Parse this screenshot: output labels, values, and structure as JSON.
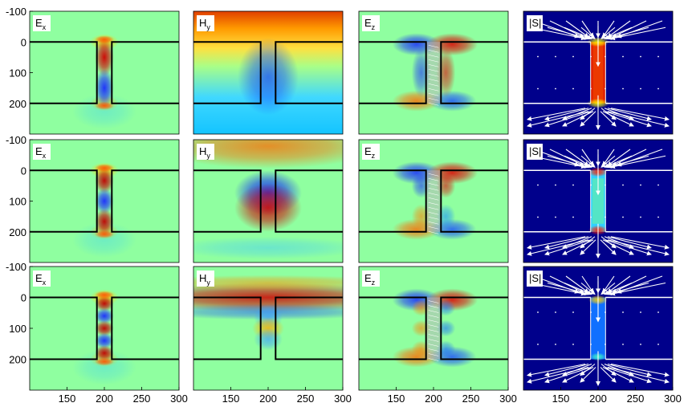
{
  "chart_data": {
    "type": "heatmap",
    "title": "",
    "x_ticks": [
      "150",
      "200",
      "250",
      "300"
    ],
    "x_tick_values": [
      150,
      200,
      250,
      300
    ],
    "y_ticks": [
      "-100",
      "0",
      "100",
      "200"
    ],
    "y_tick_values": [
      -100,
      0,
      100,
      200
    ],
    "xlim": [
      100,
      300
    ],
    "ylim": [
      -100,
      300
    ],
    "slit": {
      "x_left": 190,
      "x_right": 210,
      "y_top": 0,
      "y_bottom": 200
    },
    "columns": [
      {
        "field": "Ex",
        "label_main": "E",
        "label_sub": "x"
      },
      {
        "field": "Hy",
        "label_main": "H",
        "label_sub": "y"
      },
      {
        "field": "Ez",
        "label_main": "E",
        "label_sub": "z"
      },
      {
        "field": "S",
        "label_main": "|S|",
        "label_sub": ""
      }
    ],
    "rows": [
      {
        "mode": 1
      },
      {
        "mode": 2
      },
      {
        "mode": 3
      }
    ],
    "colors": {
      "background": "#8fffa0",
      "slit_outline": "#000000",
      "poynting_background": "#00008b",
      "arrows": "#ffffff"
    }
  }
}
